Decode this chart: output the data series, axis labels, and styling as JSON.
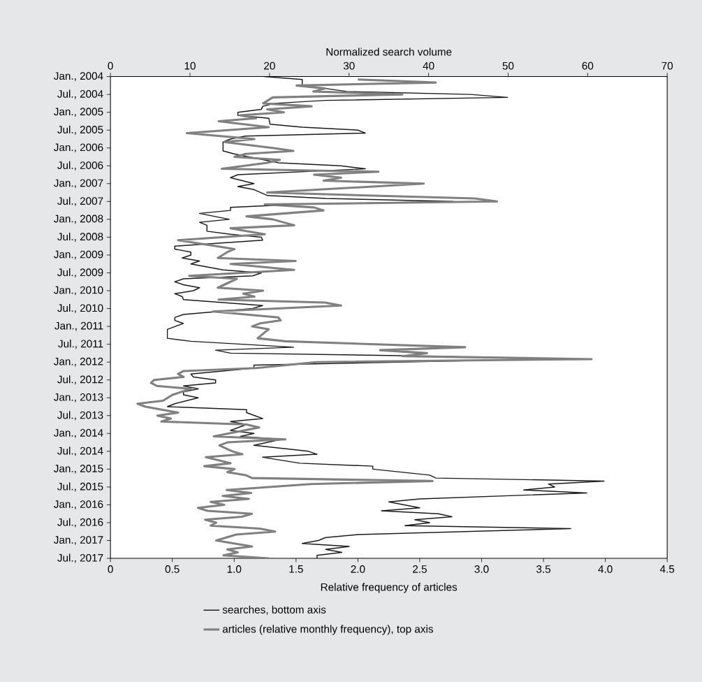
{
  "chart_data": {
    "type": "line",
    "orientation": "horizontal",
    "xlabel": "Relative frequency of articles",
    "x2label": "Normalized search volume",
    "legend": "bottom",
    "marker": "none",
    "line_style": "solid",
    "xlim": [
      0,
      4.5
    ],
    "xticks": [
      0,
      0.5,
      {
        "value": 1,
        "label": "1.0"
      },
      1.5,
      {
        "value": 2,
        "label": "2.0"
      },
      2.5,
      {
        "value": 3,
        "label": "3.0"
      },
      3.5,
      {
        "value": 4,
        "label": "4.0"
      },
      4.5
    ],
    "x2lim": [
      0,
      70
    ],
    "x2ticks": [
      0,
      10,
      20,
      30,
      40,
      50,
      60,
      70
    ],
    "ylim": [
      "2017-07",
      "2004-01"
    ],
    "yticks": [
      {
        "value": "2004-01",
        "label": "Jan., 2004"
      },
      {
        "value": "2004-07",
        "label": "Jul., 2004"
      },
      {
        "value": "2005-01",
        "label": "Jan., 2005"
      },
      {
        "value": "2005-07",
        "label": "Jul., 2005"
      },
      {
        "value": "2006-01",
        "label": "Jan., 2006"
      },
      {
        "value": "2006-07",
        "label": "Jul., 2006"
      },
      {
        "value": "2007-01",
        "label": "Jan., 2007"
      },
      {
        "value": "2007-07",
        "label": "Jul., 2007"
      },
      {
        "value": "2008-01",
        "label": "Jan., 2008"
      },
      {
        "value": "2008-07",
        "label": "Jul., 2008"
      },
      {
        "value": "2009-01",
        "label": "Jan., 2009"
      },
      {
        "value": "2009-07",
        "label": "Jul., 2009"
      },
      {
        "value": "2010-01",
        "label": "Jan., 2010"
      },
      {
        "value": "2010-07",
        "label": "Jul., 2010"
      },
      {
        "value": "2011-01",
        "label": "Jan., 2011"
      },
      {
        "value": "2011-07",
        "label": "Jul., 2011"
      },
      {
        "value": "2012-01",
        "label": "Jan., 2012"
      },
      {
        "value": "2012-07",
        "label": "Jul., 2012"
      },
      {
        "value": "2013-01",
        "label": "Jan., 2013"
      },
      {
        "value": "2013-07",
        "label": "Jul., 2013"
      },
      {
        "value": "2014-01",
        "label": "Jan., 2014"
      },
      {
        "value": "2014-07",
        "label": "Jul., 2014"
      },
      {
        "value": "2015-01",
        "label": "Jan., 2015"
      },
      {
        "value": "2015-07",
        "label": "Jul., 2015"
      },
      {
        "value": "2016-01",
        "label": "Jan., 2016"
      },
      {
        "value": "2016-07",
        "label": "Jul., 2016"
      },
      {
        "value": "2017-01",
        "label": "Jan., 2017"
      },
      {
        "value": "2017-07",
        "label": "Jul., 2017"
      }
    ],
    "series": [
      {
        "name": "searches, bottom axis",
        "color": "#1a1a1a",
        "x": [
          "2004-01",
          "2004-02",
          "2004-04",
          "2004-05",
          "2004-06",
          "2004-07",
          "2004-08",
          "2004-09",
          "2004-10",
          "2004-11",
          "2004-12",
          "2005-01",
          "2005-02",
          "2005-03",
          "2005-05",
          "2005-06",
          "2005-07",
          "2005-08",
          "2005-09",
          "2005-10",
          "2005-11",
          "2006-02",
          "2006-03",
          "2006-05",
          "2006-06",
          "2006-07",
          "2006-08",
          "2006-10",
          "2006-11",
          "2007-01",
          "2007-02",
          "2007-03",
          "2007-05",
          "2007-06",
          "2007-07",
          "2007-08",
          "2007-09",
          "2007-10",
          "2007-11",
          "2008-01",
          "2008-02",
          "2008-03",
          "2008-05",
          "2008-06",
          "2008-07",
          "2008-08",
          "2008-10",
          "2008-11",
          "2008-12",
          "2009-01",
          "2009-02",
          "2009-03",
          "2009-04",
          "2009-06",
          "2009-07",
          "2009-08",
          "2009-09",
          "2009-10",
          "2009-11",
          "2009-12",
          "2010-01",
          "2010-02",
          "2010-03",
          "2010-04",
          "2010-05",
          "2010-06",
          "2010-07",
          "2010-09",
          "2010-10",
          "2010-11",
          "2010-12",
          "2011-02",
          "2011-05",
          "2011-06",
          "2011-08",
          "2011-09",
          "2011-10",
          "2011-11",
          "2011-12",
          "2012-02",
          "2012-03",
          "2012-05",
          "2012-06",
          "2012-07",
          "2012-08",
          "2012-09",
          "2012-10",
          "2012-11",
          "2012-12",
          "2013-01",
          "2013-03",
          "2013-04",
          "2013-05",
          "2013-06",
          "2013-08",
          "2013-09",
          "2013-10",
          "2013-12",
          "2014-01",
          "2014-02",
          "2014-03",
          "2014-05",
          "2014-07",
          "2014-08",
          "2014-09",
          "2014-11",
          "2014-12",
          "2015-01",
          "2015-03",
          "2015-04",
          "2015-05",
          "2015-06",
          "2015-07",
          "2015-08",
          "2015-09",
          "2015-11",
          "2015-12",
          "2016-02",
          "2016-03",
          "2016-04",
          "2016-05",
          "2016-06",
          "2016-07",
          "2016-08",
          "2016-09",
          "2016-11",
          "2016-12",
          "2017-01",
          "2017-02",
          "2017-03",
          "2017-04",
          "2017-05",
          "2017-06",
          "2017-07"
        ],
        "values": [
          1.24,
          1.55,
          1.55,
          1.74,
          1.91,
          2.91,
          3.21,
          1.74,
          1.33,
          1.23,
          1.22,
          1.03,
          1.03,
          1.28,
          1.29,
          1.55,
          2.0,
          2.06,
          1.09,
          0.97,
          0.91,
          0.91,
          1.0,
          1.24,
          1.36,
          1.86,
          2.06,
          1.03,
          0.97,
          1.16,
          1.03,
          1.16,
          1.27,
          1.74,
          2.77,
          1.5,
          0.97,
          0.97,
          0.72,
          0.96,
          0.72,
          0.78,
          0.78,
          0.97,
          1.22,
          1.23,
          0.52,
          0.52,
          0.65,
          0.65,
          0.58,
          0.72,
          0.65,
          0.91,
          1.22,
          1.15,
          0.59,
          0.52,
          0.59,
          0.72,
          0.67,
          0.52,
          0.58,
          0.59,
          0.91,
          1.23,
          1.15,
          0.59,
          0.52,
          0.52,
          0.59,
          0.46,
          0.46,
          0.65,
          1.48,
          0.85,
          0.97,
          2.62,
          3.5,
          1.16,
          1.16,
          0.65,
          0.67,
          0.85,
          0.85,
          0.59,
          0.71,
          0.59,
          0.59,
          0.71,
          0.52,
          0.46,
          1.1,
          1.1,
          1.23,
          0.97,
          1.1,
          0.97,
          1.16,
          1.05,
          1.38,
          1.16,
          1.6,
          1.67,
          1.23,
          1.53,
          2.12,
          2.12,
          2.58,
          2.63,
          3.99,
          3.54,
          3.59,
          3.34,
          3.85,
          2.5,
          2.25,
          2.5,
          2.19,
          2.65,
          2.76,
          2.46,
          2.58,
          2.38,
          3.72,
          2.0,
          1.74,
          1.68,
          1.55,
          1.93,
          1.74,
          1.87,
          1.67,
          1.67
        ]
      },
      {
        "name": "articles (relative monthly frequency), top axis",
        "color": "#808080",
        "axis": "x2",
        "x": [
          "2004-02",
          "2004-03",
          "2004-04",
          "2004-05",
          "2004-06",
          "2004-07",
          "2004-08",
          "2004-10",
          "2004-11",
          "2004-12",
          "2005-01",
          "2005-02",
          "2005-03",
          "2005-04",
          "2005-06",
          "2005-08",
          "2005-10",
          "2005-11",
          "2006-01",
          "2006-02",
          "2006-03",
          "2006-04",
          "2006-05",
          "2006-06",
          "2006-08",
          "2006-09",
          "2006-10",
          "2006-11",
          "2006-12",
          "2007-01",
          "2007-04",
          "2007-06",
          "2007-07",
          "2007-08",
          "2007-09",
          "2007-10",
          "2007-12",
          "2008-01",
          "2008-03",
          "2008-04",
          "2008-06",
          "2008-08",
          "2008-10",
          "2008-11",
          "2008-12",
          "2009-02",
          "2009-03",
          "2009-04",
          "2009-06",
          "2009-08",
          "2009-09",
          "2009-12",
          "2010-01",
          "2010-02",
          "2010-03",
          "2010-04",
          "2010-05",
          "2010-06",
          "2010-08",
          "2010-10",
          "2010-11",
          "2010-12",
          "2011-01",
          "2011-02",
          "2011-03",
          "2011-05",
          "2011-06",
          "2011-08",
          "2011-09",
          "2011-10",
          "2011-11",
          "2011-12",
          "2012-01",
          "2012-03",
          "2012-04",
          "2012-05",
          "2012-06",
          "2012-07",
          "2012-08",
          "2012-09",
          "2012-10",
          "2012-12",
          "2013-02",
          "2013-03",
          "2013-04",
          "2013-06",
          "2013-07",
          "2013-08",
          "2013-09",
          "2013-10",
          "2013-11",
          "2014-02",
          "2014-03",
          "2014-04",
          "2014-05",
          "2014-07",
          "2014-08",
          "2014-09",
          "2014-11",
          "2014-12",
          "2015-01",
          "2015-02",
          "2015-03",
          "2015-04",
          "2015-05",
          "2015-06",
          "2015-08",
          "2015-09",
          "2015-10",
          "2015-11",
          "2015-12",
          "2016-01",
          "2016-02",
          "2016-03",
          "2016-04",
          "2016-05",
          "2016-06",
          "2016-07",
          "2016-08",
          "2016-09",
          "2016-10",
          "2016-11",
          "2017-01",
          "2017-03",
          "2017-04",
          "2017-05",
          "2017-06",
          "2017-07"
        ],
        "values": [
          31.1,
          40.9,
          23.4,
          27.0,
          25.5,
          36.7,
          20.4,
          19.2,
          25.3,
          19.7,
          21.8,
          16.3,
          18.3,
          13.6,
          19.9,
          9.6,
          18.1,
          14.3,
          20.4,
          23.0,
          17.0,
          15.6,
          21.3,
          19.7,
          14.0,
          33.7,
          25.6,
          29.0,
          26.8,
          39.4,
          19.7,
          45.8,
          48.6,
          19.4,
          25.6,
          26.8,
          17.1,
          20.4,
          23.1,
          15.1,
          19.4,
          8.5,
          13.3,
          15.6,
          14.7,
          13.5,
          23.3,
          15.1,
          23.1,
          9.9,
          15.9,
          13.5,
          19.2,
          16.7,
          18.1,
          13.6,
          27.0,
          29.0,
          12.9,
          21.1,
          21.4,
          18.8,
          17.8,
          19.9,
          19.4,
          18.5,
          22.0,
          44.6,
          33.9,
          39.8,
          36.7,
          60.5,
          25.9,
          18.3,
          9.2,
          8.5,
          9.2,
          5.5,
          5.1,
          5.8,
          10.1,
          7.8,
          6.6,
          3.4,
          4.4,
          8.5,
          5.9,
          7.6,
          6.4,
          17.1,
          18.7,
          13.0,
          22.0,
          14.7,
          13.7,
          15.3,
          16.6,
          12.0,
          15.1,
          11.8,
          15.6,
          14.7,
          17.0,
          17.8,
          40.5,
          25.2,
          14.6,
          17.7,
          14.1,
          17.4,
          12.6,
          14.3,
          11.0,
          12.2,
          17.8,
          16.5,
          11.9,
          13.3,
          12.6,
          18.8,
          20.7,
          15.8,
          13.3,
          17.8,
          14.7,
          16.0,
          14.2,
          19.9
        ]
      }
    ]
  }
}
